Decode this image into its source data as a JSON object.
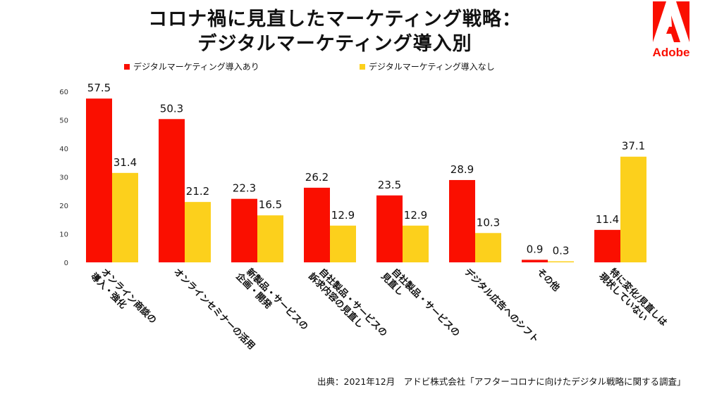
{
  "brand": {
    "name": "Adobe",
    "color": "#fa0f00"
  },
  "chart_data": {
    "type": "bar",
    "title": "コロナ禍に見直したマーケティング戦略：\nデジタルマーケティング導入別",
    "title_lines": [
      "コロナ禍に見直したマーケティング戦略：",
      "デジタルマーケティング導入別"
    ],
    "xlabel": "",
    "ylabel": "",
    "ylim": [
      0,
      60
    ],
    "yticks": [
      0,
      10,
      20,
      30,
      40,
      50,
      60
    ],
    "grid": false,
    "legend_position": "top",
    "categories": [
      [
        "オンライン商談の",
        "導入・強化"
      ],
      [
        "オンラインセミナーの活用"
      ],
      [
        "新製品・サービスの",
        "企画・開発"
      ],
      [
        "自社製品・サービスの",
        "訴求内容の見直し"
      ],
      [
        "自社製品・サービスの",
        "見直し"
      ],
      [
        "デジタル広告へのシフト"
      ],
      [
        "その他"
      ],
      [
        "特に変化/見直しは",
        "現状していない"
      ]
    ],
    "series": [
      {
        "name": "デジタルマーケティング導入あり",
        "color": "#fa0f00",
        "values": [
          57.5,
          50.3,
          22.3,
          26.2,
          23.5,
          28.9,
          0.9,
          11.4
        ],
        "labels": [
          "57.5",
          "50.3",
          "22.3",
          "26.2",
          "23.5",
          "28.9",
          "0.9",
          "11.4"
        ]
      },
      {
        "name": "デジタルマーケティング導入なし",
        "color": "#fcd01c",
        "values": [
          31.4,
          21.2,
          16.5,
          12.9,
          12.9,
          10.3,
          0.3,
          37.1
        ],
        "labels": [
          "31.4",
          "21.2",
          "16.5",
          "12.9",
          "12.9",
          "10.3",
          "0.3",
          "37.1"
        ]
      }
    ]
  },
  "source": "出典：2021年12月　アドビ株式会社「アフターコロナに向けたデジタル戦略に関する調査」"
}
